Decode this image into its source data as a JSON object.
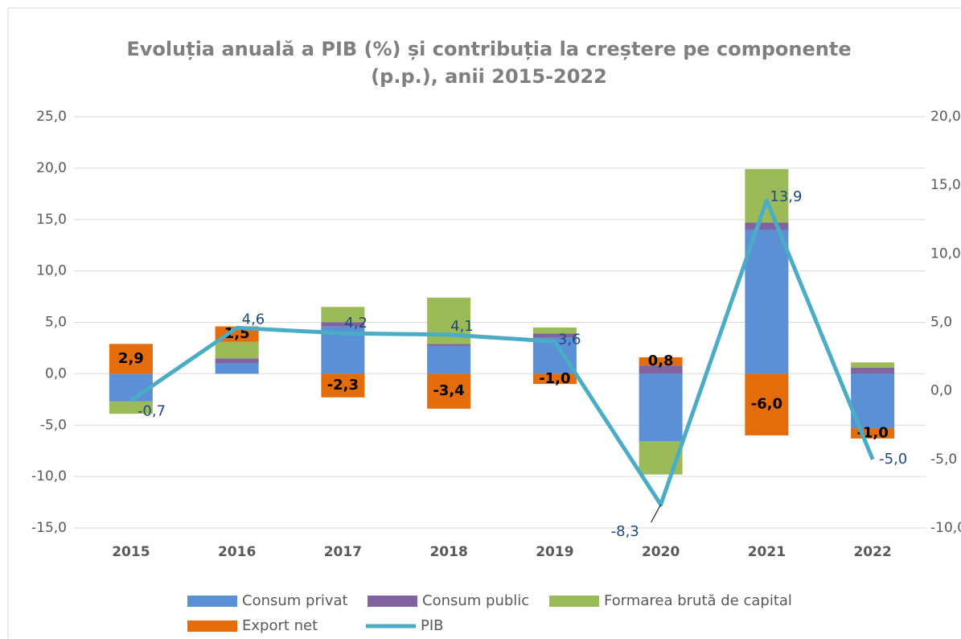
{
  "chart_data": {
    "type": "bar",
    "title": "Evoluția anuală a PIB (%) și contribuția la creștere pe componente",
    "subtitle": "(p.p.), anii 2015-2022",
    "categories": [
      "2015",
      "2016",
      "2017",
      "2018",
      "2019",
      "2020",
      "2021",
      "2022"
    ],
    "series": [
      {
        "name": "Consum privat",
        "color": "#5b8fd6",
        "values": [
          -2.7,
          1.0,
          4.6,
          2.7,
          3.5,
          -6.6,
          14.0,
          -5.3
        ]
      },
      {
        "name": "Consum public",
        "color": "#8064a2",
        "values": [
          0,
          0.5,
          0.4,
          0.2,
          0.4,
          0.8,
          0.7,
          0.6
        ]
      },
      {
        "name": "Formarea brută de capital",
        "color": "#9bbb59",
        "values": [
          -1.2,
          1.6,
          1.5,
          4.5,
          0.6,
          -3.2,
          5.2,
          0.5
        ]
      },
      {
        "name": "Export net",
        "color": "#e46c0a",
        "values": [
          2.9,
          1.5,
          -2.3,
          -3.4,
          -1.0,
          0.8,
          -6.0,
          -1.0
        ],
        "value_labels": [
          "2,9",
          "1,5",
          "-2,3",
          "-3,4",
          "-1,0",
          "0,8",
          "-6,0",
          "-1,0"
        ]
      },
      {
        "name": "PIB",
        "type": "line",
        "axis": "y2",
        "color": "#4bacc6",
        "values": [
          -0.7,
          4.6,
          4.2,
          4.1,
          3.6,
          -8.3,
          13.9,
          -5.0
        ],
        "value_labels": [
          "-0,7",
          "4,6",
          "4,2",
          "4,1",
          "3,6",
          "-8,3",
          "13,9",
          "-5,0"
        ]
      }
    ],
    "ylim": [
      -15,
      25
    ],
    "yticks": [
      {
        "value": -15,
        "label": "-15,0"
      },
      {
        "value": -10,
        "label": "-10,0"
      },
      {
        "value": -5,
        "label": "-5,0"
      },
      {
        "value": 0,
        "label": "0,0"
      },
      {
        "value": 5,
        "label": "5,0"
      },
      {
        "value": 10,
        "label": "10,0"
      },
      {
        "value": 15,
        "label": "15,0"
      },
      {
        "value": 20,
        "label": "20,0"
      },
      {
        "value": 25,
        "label": "25,0"
      }
    ],
    "y2lim": [
      -10,
      20
    ],
    "y2ticks": [
      {
        "value": -10,
        "label": "-10,0"
      },
      {
        "value": -5,
        "label": "-5,0"
      },
      {
        "value": 0,
        "label": "0,0"
      },
      {
        "value": 5,
        "label": "5,0"
      },
      {
        "value": 10,
        "label": "10,0"
      },
      {
        "value": 15,
        "label": "15,0"
      },
      {
        "value": 20,
        "label": "20,0"
      }
    ],
    "grid": true,
    "legend": "bottom"
  }
}
